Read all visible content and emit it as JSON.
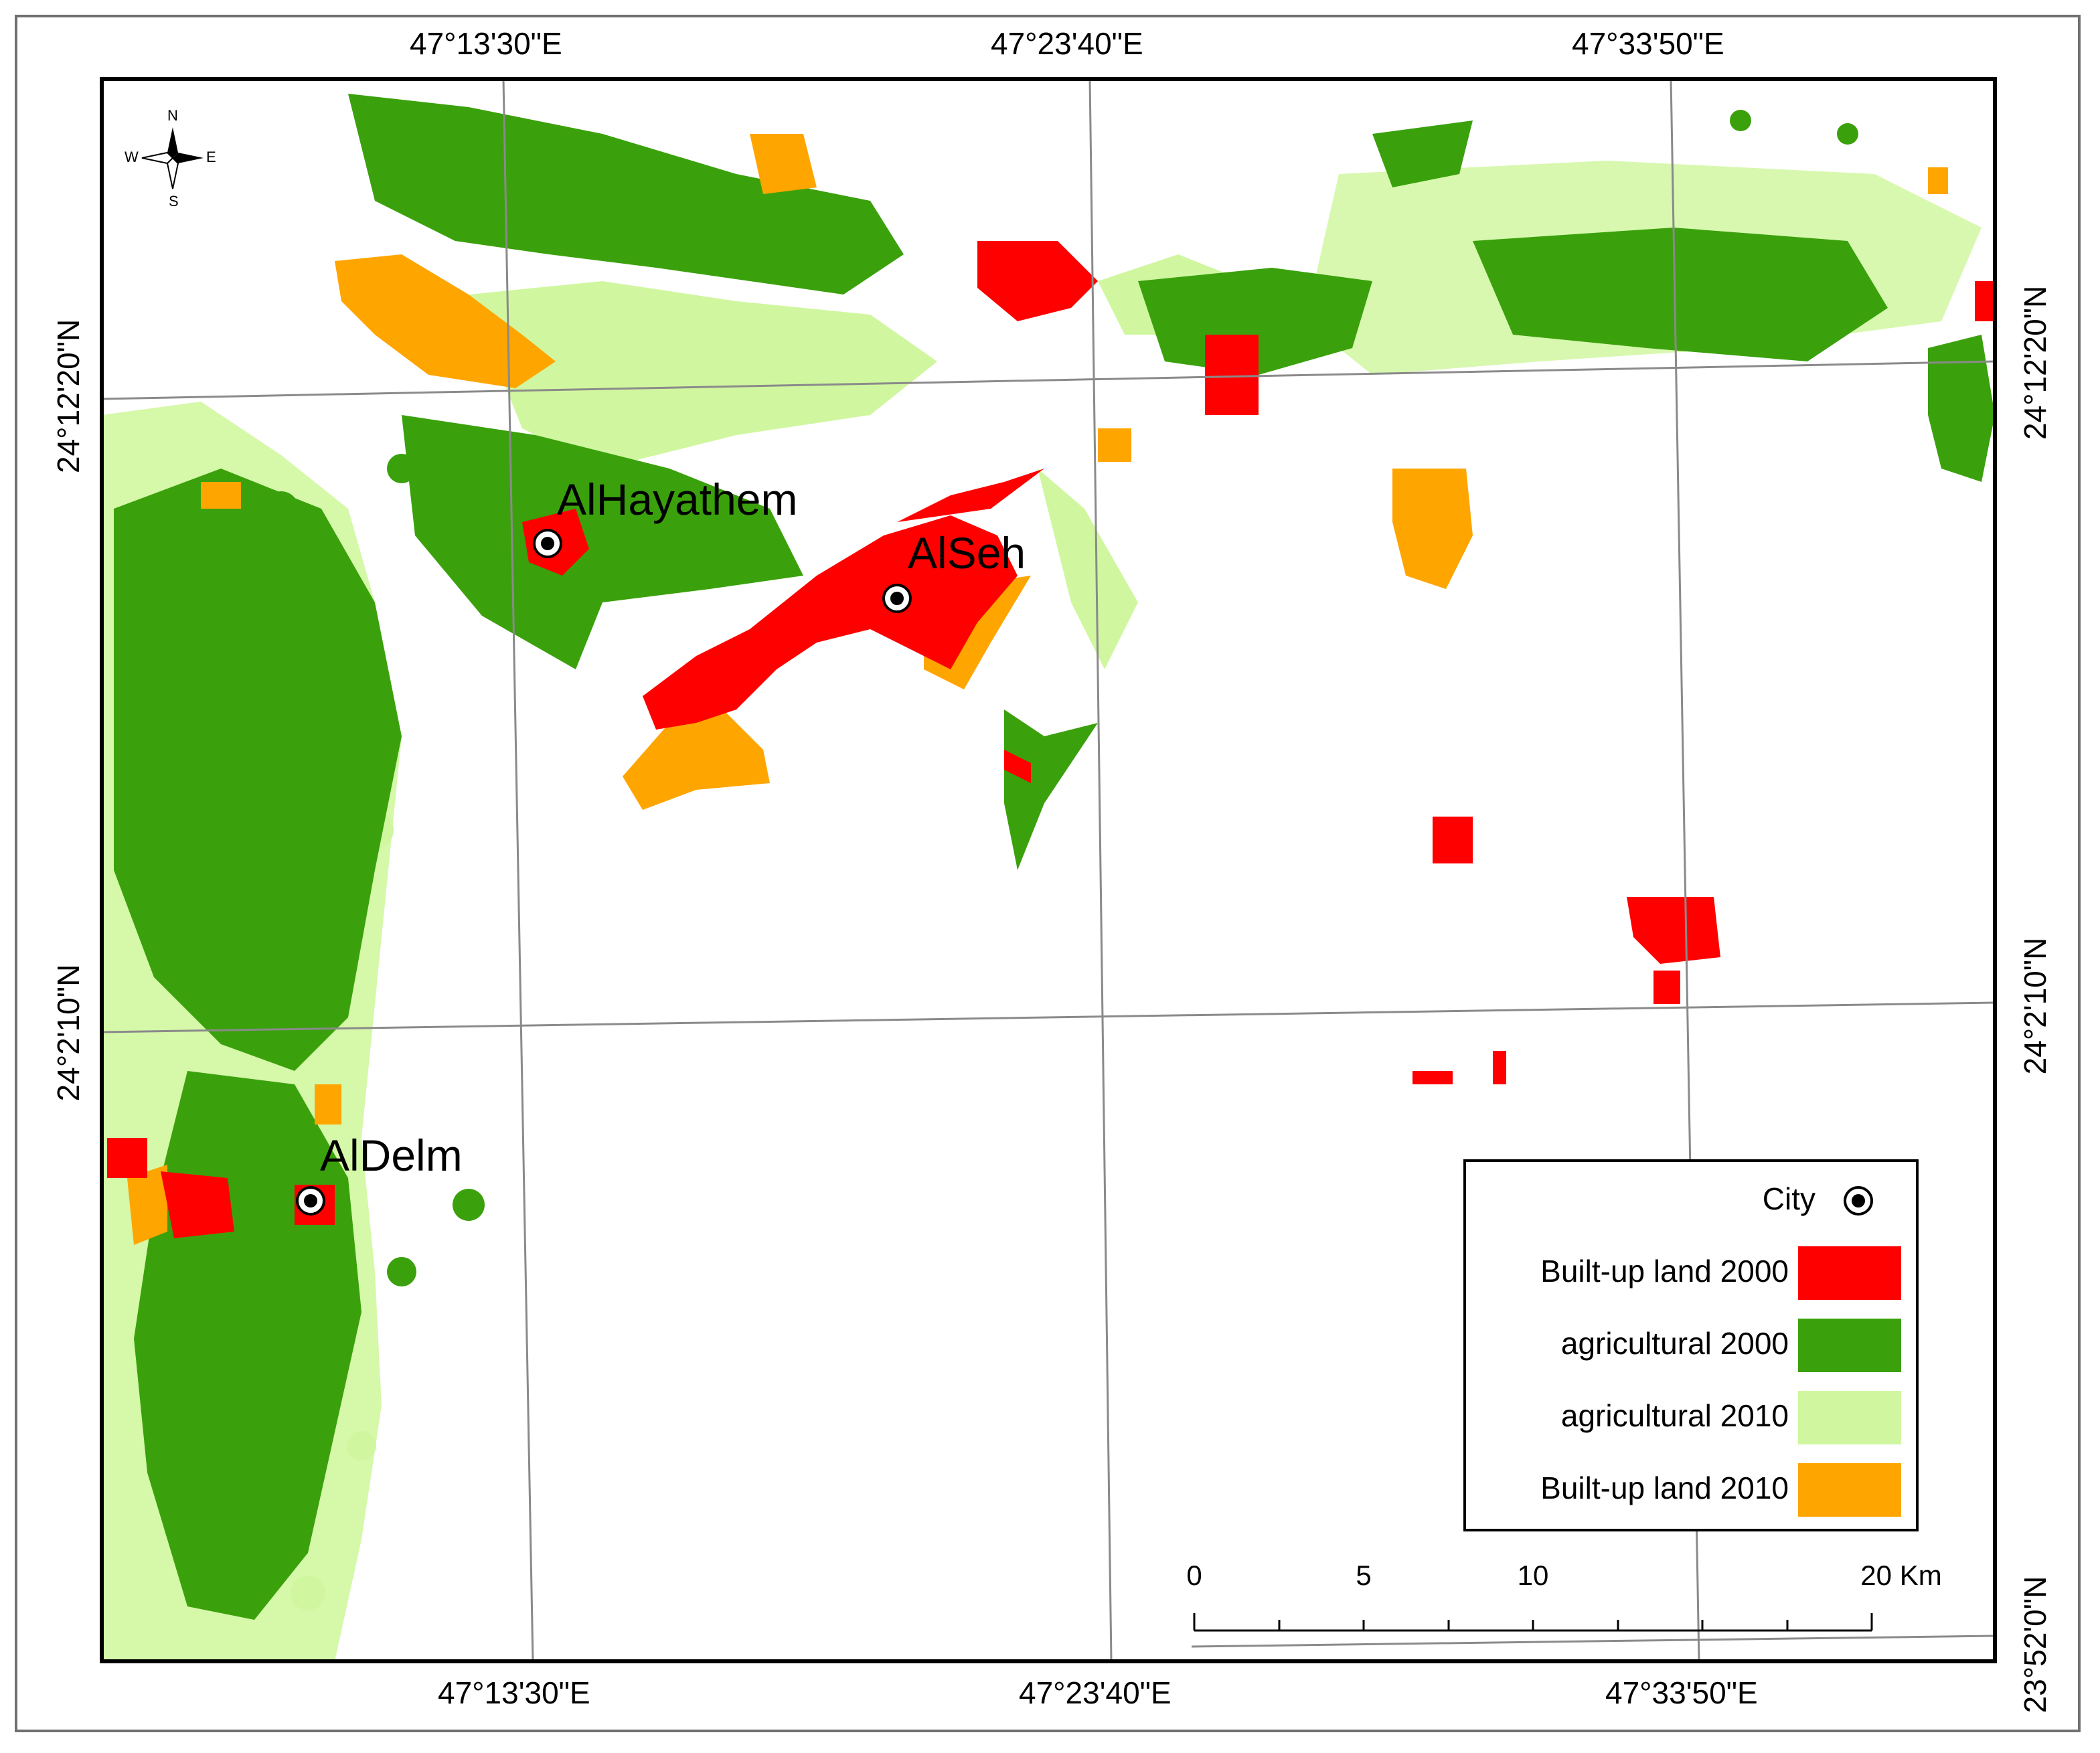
{
  "coordinates": {
    "top_lon": [
      "47°13'30\"E",
      "47°23'40\"E",
      "47°33'50\"E"
    ],
    "bottom_lon": [
      "47°13'30\"E",
      "47°23'40\"E",
      "47°33'50\"E"
    ],
    "left_lat": [
      "24°12'20\"N",
      "24°2'10\"N"
    ],
    "right_lat": [
      "24°12'20\"N",
      "24°2'10\"N",
      "23°52'0\"N"
    ]
  },
  "cities": [
    {
      "name": "AlHayathem"
    },
    {
      "name": "AlSeh"
    },
    {
      "name": "AlDelm"
    }
  ],
  "legend": {
    "city_label": "City",
    "items": [
      {
        "label": "Built-up land 2000",
        "color": "#ff0000"
      },
      {
        "label": "agricultural 2000",
        "color": "#3aa10c"
      },
      {
        "label": "agricultural 2010",
        "color": "#d0f7a0"
      },
      {
        "label": "Built-up land 2010",
        "color": "#ffa500"
      }
    ]
  },
  "scalebar": {
    "ticks": [
      "0",
      "5",
      "10",
      "20 Km"
    ]
  },
  "compass": {
    "n": "N",
    "s": "S",
    "e": "E",
    "w": "W",
    "icon": "compass-rose-icon"
  },
  "colors": {
    "builtup2000": "#ff0000",
    "agri2000": "#3aa10c",
    "agri2010": "#d0f7a0",
    "builtup2010": "#ffa500",
    "grid": "#8a8a8a"
  }
}
